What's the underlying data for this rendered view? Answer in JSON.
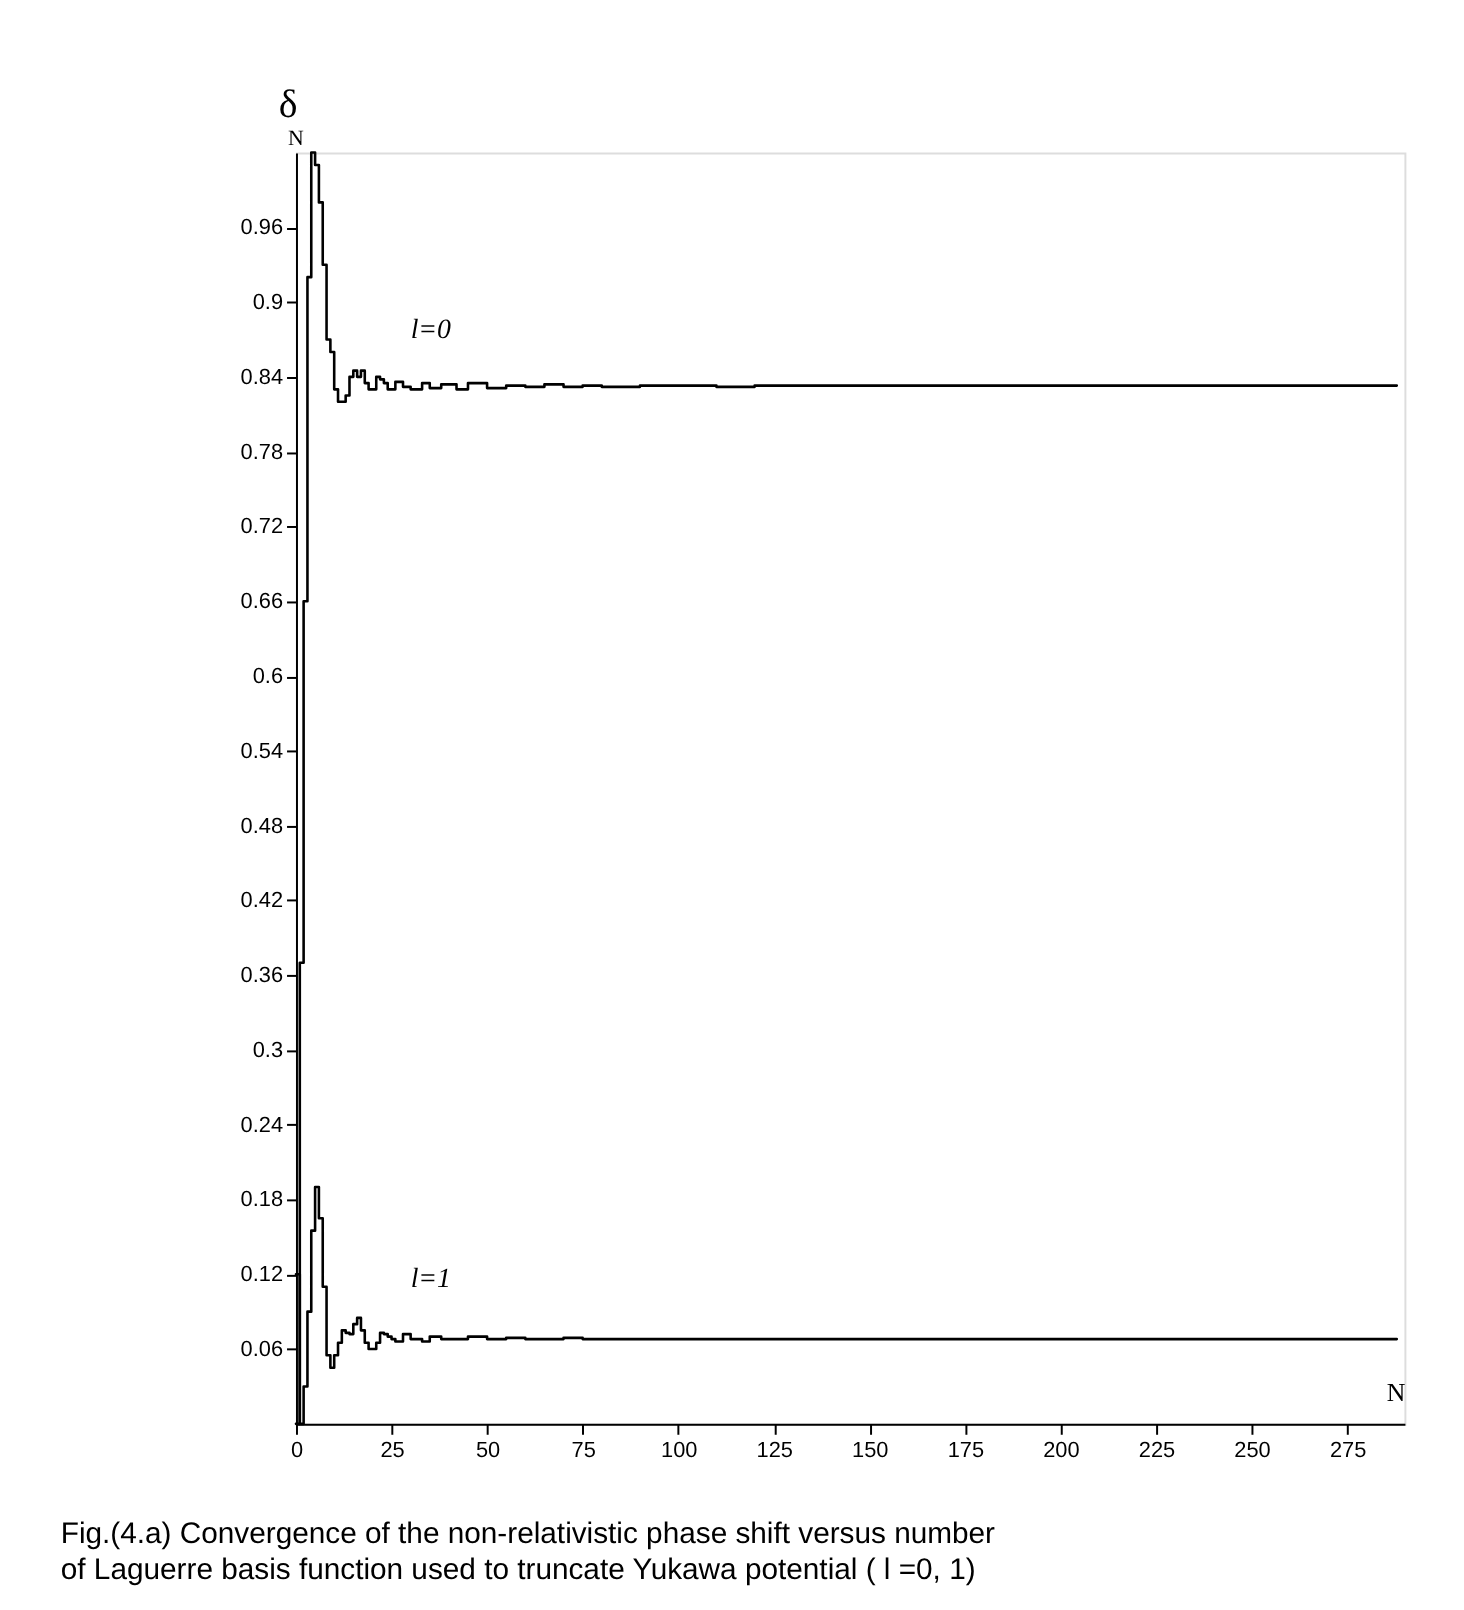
{
  "chart_data": {
    "type": "step",
    "xlabel": "N",
    "ylabel": "δ$_{N}$",
    "x": [
      0,
      1,
      2,
      3,
      4,
      5,
      6,
      7,
      8,
      9,
      10,
      11,
      12,
      13,
      14,
      15,
      16,
      17,
      18,
      19,
      20,
      21,
      22,
      23,
      24,
      25,
      26,
      28,
      30,
      33,
      35,
      38,
      42,
      45,
      50,
      55,
      60,
      65,
      70,
      75,
      80,
      90,
      100,
      110,
      120,
      130,
      140,
      150,
      160,
      175,
      190,
      200,
      215,
      230,
      250,
      270,
      288
    ],
    "series": [
      {
        "name": "l=0",
        "color": "#000000",
        "values": [
          0.0,
          0.37,
          0.66,
          0.92,
          1.02,
          1.01,
          0.98,
          0.93,
          0.87,
          0.86,
          0.83,
          0.82,
          0.82,
          0.825,
          0.84,
          0.845,
          0.84,
          0.845,
          0.835,
          0.83,
          0.83,
          0.84,
          0.838,
          0.835,
          0.83,
          0.83,
          0.836,
          0.832,
          0.83,
          0.835,
          0.831,
          0.834,
          0.83,
          0.835,
          0.831,
          0.833,
          0.832,
          0.834,
          0.832,
          0.833,
          0.832,
          0.833,
          0.833,
          0.832,
          0.833,
          0.833,
          0.833,
          0.833,
          0.833,
          0.833,
          0.833,
          0.833,
          0.833,
          0.833,
          0.833,
          0.833,
          0.833
        ]
      },
      {
        "name": "l=1",
        "color": "#000000",
        "values": [
          0.12,
          0.0,
          0.03,
          0.09,
          0.155,
          0.19,
          0.165,
          0.11,
          0.055,
          0.045,
          0.055,
          0.065,
          0.075,
          0.073,
          0.072,
          0.08,
          0.085,
          0.075,
          0.065,
          0.06,
          0.06,
          0.065,
          0.073,
          0.072,
          0.07,
          0.068,
          0.066,
          0.072,
          0.068,
          0.066,
          0.07,
          0.068,
          0.068,
          0.07,
          0.068,
          0.069,
          0.068,
          0.068,
          0.069,
          0.068,
          0.068,
          0.068,
          0.068,
          0.068,
          0.068,
          0.068,
          0.068,
          0.068,
          0.068,
          0.068,
          0.068,
          0.068,
          0.068,
          0.068,
          0.068,
          0.068,
          0.068
        ]
      }
    ],
    "xlim": [
      0,
      290
    ],
    "xticks": [
      0,
      25,
      50,
      75,
      100,
      125,
      150,
      175,
      200,
      225,
      250,
      275
    ],
    "ylim": [
      0,
      1.02
    ],
    "yticks": [
      0.06,
      0.12,
      0.18,
      0.24,
      0.3,
      0.36,
      0.42,
      0.48,
      0.54,
      0.6,
      0.66,
      0.72,
      0.78,
      0.84,
      0.9,
      0.96
    ],
    "grid": false,
    "line_style": "solid",
    "marker": "none",
    "legend": false,
    "annotations": [
      "Fig.(4.a) Convergence of the non-relativistic phase shift versus number\nof Laguerre basis function used to truncate Yukawa potential ( l =0, 1)"
    ]
  }
}
